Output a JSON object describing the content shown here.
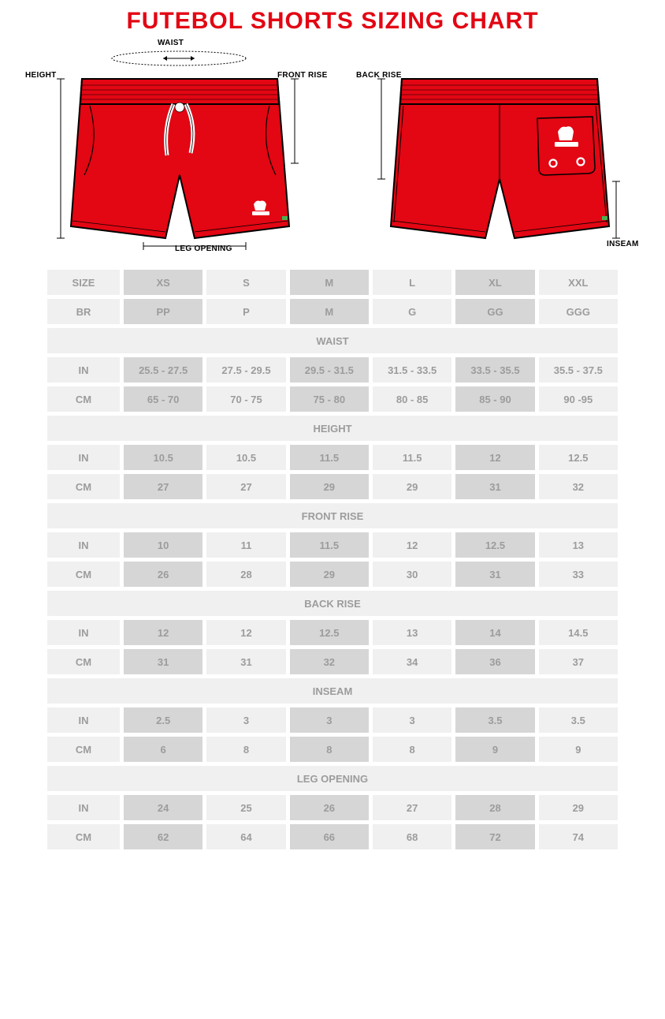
{
  "title": "FUTEBOL SHORTS SIZING CHART",
  "annotations": {
    "waist": "WAIST",
    "height": "HEIGHT",
    "front_rise": "FRONT RISE",
    "leg_opening": "LEG OPENING",
    "back_rise": "BACK RISE",
    "inseam": "INSEAM"
  },
  "colors": {
    "shorts_fill": "#e30613",
    "shorts_stroke": "#000000",
    "title": "#e30613",
    "cell_light": "#f0f0f0",
    "cell_dark": "#d6d6d6",
    "text_muted": "#9c9c9c",
    "tag_green": "#4caf50"
  },
  "sizes_header": {
    "label": "SIZE",
    "values": [
      "XS",
      "S",
      "M",
      "L",
      "XL",
      "XXL"
    ]
  },
  "br_header": {
    "label": "BR",
    "values": [
      "PP",
      "P",
      "M",
      "G",
      "GG",
      "GGG"
    ]
  },
  "sections": [
    {
      "name": "WAIST",
      "rows": [
        {
          "label": "IN",
          "values": [
            "25.5 - 27.5",
            "27.5 - 29.5",
            "29.5 - 31.5",
            "31.5 - 33.5",
            "33.5 - 35.5",
            "35.5 - 37.5"
          ]
        },
        {
          "label": "CM",
          "values": [
            "65 - 70",
            "70 - 75",
            "75 - 80",
            "80 - 85",
            "85 - 90",
            "90 -95"
          ]
        }
      ]
    },
    {
      "name": "HEIGHT",
      "rows": [
        {
          "label": "IN",
          "values": [
            "10.5",
            "10.5",
            "11.5",
            "11.5",
            "12",
            "12.5"
          ]
        },
        {
          "label": "CM",
          "values": [
            "27",
            "27",
            "29",
            "29",
            "31",
            "32"
          ]
        }
      ]
    },
    {
      "name": "FRONT RISE",
      "rows": [
        {
          "label": "IN",
          "values": [
            "10",
            "11",
            "11.5",
            "12",
            "12.5",
            "13"
          ]
        },
        {
          "label": "CM",
          "values": [
            "26",
            "28",
            "29",
            "30",
            "31",
            "33"
          ]
        }
      ]
    },
    {
      "name": "BACK RISE",
      "rows": [
        {
          "label": "IN",
          "values": [
            "12",
            "12",
            "12.5",
            "13",
            "14",
            "14.5"
          ]
        },
        {
          "label": "CM",
          "values": [
            "31",
            "31",
            "32",
            "34",
            "36",
            "37"
          ]
        }
      ]
    },
    {
      "name": "INSEAM",
      "rows": [
        {
          "label": "IN",
          "values": [
            "2.5",
            "3",
            "3",
            "3",
            "3.5",
            "3.5"
          ]
        },
        {
          "label": "CM",
          "values": [
            "6",
            "8",
            "8",
            "8",
            "9",
            "9"
          ]
        }
      ]
    },
    {
      "name": "LEG OPENING",
      "rows": [
        {
          "label": "IN",
          "values": [
            "24",
            "25",
            "26",
            "27",
            "28",
            "29"
          ]
        },
        {
          "label": "CM",
          "values": [
            "62",
            "64",
            "66",
            "68",
            "72",
            "74"
          ]
        }
      ]
    }
  ]
}
